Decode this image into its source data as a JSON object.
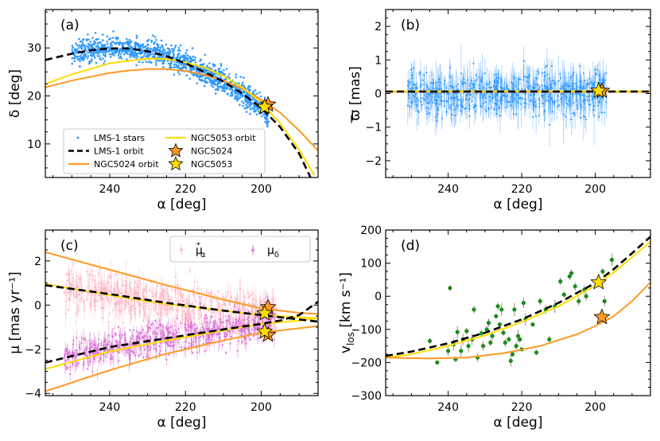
{
  "chart_data": [
    {
      "type": "scatter",
      "panel": "(a)",
      "xlabel": "α  [deg]",
      "ylabel": "δ  [deg]",
      "xlim": [
        257,
        185
      ],
      "ylim": [
        3,
        38
      ],
      "xticks": [
        240,
        220,
        200
      ],
      "yticks": [
        10,
        20,
        30
      ],
      "legend_position": "lower-left",
      "legend": [
        {
          "label": "LMS-1 stars",
          "kind": "dots",
          "color": "#3399ff"
        },
        {
          "label": "LMS-1 orbit",
          "kind": "dash",
          "color": "#000000"
        },
        {
          "label": "NGC5024 orbit",
          "kind": "line",
          "color": "#ff9922"
        },
        {
          "label": "NGC5053 orbit",
          "kind": "line",
          "color": "#ffdd00"
        },
        {
          "label": "NGC5024",
          "kind": "star",
          "color": "#ff9922"
        },
        {
          "label": "NGC5053",
          "kind": "star",
          "color": "#ffdd00"
        }
      ],
      "series": [
        {
          "name": "LMS-1 orbit",
          "style": "dash",
          "color": "#000000",
          "x": [
            257,
            250,
            245,
            240,
            235,
            230,
            225,
            220,
            215,
            210,
            205,
            200,
            195,
            190,
            187
          ],
          "y": [
            27.5,
            28.8,
            29.5,
            29.9,
            29.9,
            29.3,
            28.3,
            26.8,
            25.0,
            23.0,
            20.5,
            17.5,
            13.5,
            8.0,
            3
          ]
        },
        {
          "name": "NGC5024 orbit",
          "style": "line",
          "color": "#ff9922",
          "x": [
            257,
            250,
            240,
            235,
            230,
            225,
            220,
            215,
            210,
            205,
            200,
            195,
            190,
            185
          ],
          "y": [
            21.8,
            23.2,
            24.8,
            25.3,
            25.6,
            25.6,
            25.2,
            24.4,
            23.2,
            21.5,
            19.2,
            16.5,
            12.8,
            8.6
          ]
        },
        {
          "name": "NGC5053 orbit",
          "style": "line",
          "color": "#ffdd00",
          "x": [
            257,
            250,
            240,
            230,
            225,
            220,
            215,
            210,
            205,
            200,
            195,
            190,
            186
          ],
          "y": [
            22.5,
            24.5,
            26.8,
            27.8,
            27.7,
            27.0,
            25.9,
            24.2,
            21.8,
            18.6,
            14.3,
            8.8,
            3.5
          ]
        }
      ],
      "stars_color": "#3399ff",
      "points": [
        {
          "name": "NGC5024",
          "x": 198.2,
          "y": 18.2,
          "color": "#ff9922"
        },
        {
          "name": "NGC5053",
          "x": 199.1,
          "y": 17.7,
          "color": "#ffdd00"
        }
      ]
    },
    {
      "type": "scatter",
      "panel": "(b)",
      "xlabel": "α  [deg]",
      "ylabel": "ϖ  [mas]",
      "xlim": [
        257,
        185
      ],
      "ylim": [
        -2.5,
        2.5
      ],
      "xticks": [
        240,
        220,
        200
      ],
      "yticks": [
        -2,
        -1,
        0,
        1,
        2
      ],
      "series": [
        {
          "name": "LMS-1 orbit",
          "style": "dash",
          "color": "#000000",
          "x": [
            257,
            185
          ],
          "y": [
            0.06,
            0.06
          ]
        },
        {
          "name": "NGC5024 orbit",
          "style": "line",
          "color": "#ff9922",
          "x": [
            257,
            185
          ],
          "y": [
            0.05,
            0.05
          ]
        },
        {
          "name": "NGC5053 orbit",
          "style": "line",
          "color": "#ffdd00",
          "x": [
            257,
            185
          ],
          "y": [
            0.07,
            0.07
          ]
        }
      ],
      "stars_color": "#3399ff",
      "points": [
        {
          "name": "NGC5024",
          "x": 198.2,
          "y": 0.08,
          "color": "#ff9922"
        },
        {
          "name": "NGC5053",
          "x": 199.1,
          "y": 0.08,
          "color": "#ffdd00"
        }
      ]
    },
    {
      "type": "scatter",
      "panel": "(c)",
      "xlabel": "α  [deg]",
      "ylabel": "μ  [mas yr⁻¹]",
      "xlim": [
        257,
        185
      ],
      "ylim": [
        -4.1,
        3.4
      ],
      "xticks": [
        240,
        220,
        200
      ],
      "yticks": [
        -4,
        -2,
        0,
        2
      ],
      "legend_position": "top-right",
      "legend": [
        {
          "label": "μ",
          "sup": "*",
          "sub": "α",
          "color": "#ffb6c1"
        },
        {
          "label": "μ",
          "sup": "",
          "sub": "δ",
          "color": "#da70d6"
        }
      ],
      "series": [
        {
          "name": "LMS-1 orbit μα",
          "style": "dash",
          "color": "#000000",
          "x": [
            257,
            240,
            225,
            210,
            200,
            190,
            185
          ],
          "y": [
            0.9,
            0.5,
            0.1,
            -0.25,
            -0.45,
            -0.65,
            -0.75
          ]
        },
        {
          "name": "LMS-1 orbit μδ",
          "style": "dash",
          "color": "#000000",
          "x": [
            257,
            240,
            225,
            210,
            200,
            195,
            190,
            185
          ],
          "y": [
            -2.6,
            -1.9,
            -1.5,
            -1.1,
            -0.85,
            -0.7,
            -0.45,
            0.15
          ]
        },
        {
          "name": "NGC5024 orbit μα",
          "style": "line",
          "color": "#ff9922",
          "x": [
            257,
            240,
            225,
            210,
            200,
            190,
            185
          ],
          "y": [
            2.4,
            1.6,
            0.9,
            0.25,
            -0.15,
            -0.35,
            -0.4
          ]
        },
        {
          "name": "NGC5024 orbit μδ",
          "style": "line",
          "color": "#ff9922",
          "x": [
            257,
            240,
            225,
            210,
            200,
            190,
            185
          ],
          "y": [
            -3.9,
            -2.95,
            -2.2,
            -1.6,
            -1.25,
            -1.05,
            -0.95
          ]
        },
        {
          "name": "NGC5053 orbit μα",
          "style": "line",
          "color": "#ffdd00",
          "x": [
            257,
            240,
            225,
            210,
            200,
            190,
            185
          ],
          "y": [
            0.95,
            0.45,
            0.05,
            -0.25,
            -0.45,
            -0.55,
            -0.6
          ]
        },
        {
          "name": "NGC5053 orbit μδ",
          "style": "line",
          "color": "#ffdd00",
          "x": [
            257,
            240,
            225,
            210,
            200,
            190,
            185
          ],
          "y": [
            -2.9,
            -2.1,
            -1.6,
            -1.15,
            -0.85,
            -0.7,
            -0.6
          ]
        }
      ],
      "mu_alpha_color": "#ffb6c1",
      "mu_delta_color": "#da70d6",
      "points": [
        {
          "name": "NGC5024 μα",
          "x": 198.2,
          "y": -0.1,
          "color": "#ff9922"
        },
        {
          "name": "NGC5053 μα",
          "x": 199.1,
          "y": -0.37,
          "color": "#ffdd00"
        },
        {
          "name": "NGC5024 μδ",
          "x": 198.2,
          "y": -1.35,
          "color": "#ff9922"
        },
        {
          "name": "NGC5053 μδ",
          "x": 199.1,
          "y": -1.2,
          "color": "#ffdd00"
        }
      ]
    },
    {
      "type": "scatter",
      "panel": "(d)",
      "xlabel": "α  [deg]",
      "ylabel": "v_los  [km s⁻¹]",
      "xlim": [
        257,
        185
      ],
      "ylim": [
        -300,
        200
      ],
      "xticks": [
        240,
        220,
        200
      ],
      "yticks": [
        -300,
        -200,
        -100,
        0,
        100,
        200
      ],
      "series": [
        {
          "name": "LMS-1 orbit",
          "style": "dash",
          "color": "#000000",
          "x": [
            257,
            250,
            240,
            230,
            220,
            210,
            200,
            195,
            190,
            185
          ],
          "y": [
            -180,
            -167,
            -142,
            -110,
            -70,
            -20,
            40,
            82,
            130,
            180
          ]
        },
        {
          "name": "NGC5053 orbit",
          "style": "line",
          "color": "#ffdd00",
          "x": [
            257,
            250,
            240,
            230,
            220,
            210,
            200,
            195,
            190,
            185
          ],
          "y": [
            -185,
            -175,
            -150,
            -118,
            -78,
            -30,
            32,
            72,
            118,
            165
          ]
        },
        {
          "name": "NGC5024 orbit",
          "style": "line",
          "color": "#ff9922",
          "x": [
            257,
            245,
            235,
            225,
            215,
            205,
            200,
            195,
            190,
            185
          ],
          "y": [
            -185,
            -188,
            -185,
            -172,
            -150,
            -115,
            -90,
            -60,
            -15,
            42
          ]
        }
      ],
      "marker_color": "#1a8c1a",
      "stars": [
        {
          "x": 245,
          "y": -135
        },
        {
          "x": 243,
          "y": -200
        },
        {
          "x": 240,
          "y": -165
        },
        {
          "x": 239.5,
          "y": 25
        },
        {
          "x": 238.5,
          "y": -145
        },
        {
          "x": 238,
          "y": -190
        },
        {
          "x": 237.5,
          "y": -108
        },
        {
          "x": 236.5,
          "y": -165
        },
        {
          "x": 236,
          "y": -130
        },
        {
          "x": 235,
          "y": -105
        },
        {
          "x": 234.5,
          "y": -150
        },
        {
          "x": 233.5,
          "y": -130
        },
        {
          "x": 233,
          "y": -40
        },
        {
          "x": 232,
          "y": -185
        },
        {
          "x": 231,
          "y": -112
        },
        {
          "x": 230.5,
          "y": -150
        },
        {
          "x": 229.5,
          "y": -100
        },
        {
          "x": 229,
          "y": -80
        },
        {
          "x": 228.5,
          "y": -140
        },
        {
          "x": 228,
          "y": -120
        },
        {
          "x": 227,
          "y": -60
        },
        {
          "x": 226.5,
          "y": -30
        },
        {
          "x": 226,
          "y": -85
        },
        {
          "x": 225.5,
          "y": -40
        },
        {
          "x": 225,
          "y": -110
        },
        {
          "x": 224.5,
          "y": -140
        },
        {
          "x": 223.5,
          "y": -130
        },
        {
          "x": 223,
          "y": -195
        },
        {
          "x": 222.5,
          "y": -175
        },
        {
          "x": 222,
          "y": -40
        },
        {
          "x": 221.5,
          "y": -150
        },
        {
          "x": 221,
          "y": -120
        },
        {
          "x": 220.5,
          "y": -130
        },
        {
          "x": 220,
          "y": -160
        },
        {
          "x": 219.5,
          "y": -20
        },
        {
          "x": 219,
          "y": -70
        },
        {
          "x": 217,
          "y": -85
        },
        {
          "x": 216,
          "y": -170
        },
        {
          "x": 215,
          "y": -15
        },
        {
          "x": 213.5,
          "y": -40
        },
        {
          "x": 212.5,
          "y": -130
        },
        {
          "x": 211,
          "y": -30
        },
        {
          "x": 209.5,
          "y": 45
        },
        {
          "x": 208.5,
          "y": 5
        },
        {
          "x": 207,
          "y": 60
        },
        {
          "x": 206.5,
          "y": 70
        },
        {
          "x": 205.5,
          "y": 30
        },
        {
          "x": 204.5,
          "y": -15
        },
        {
          "x": 203,
          "y": 20
        },
        {
          "x": 202.5,
          "y": 0
        },
        {
          "x": 198,
          "y": 75
        },
        {
          "x": 197.5,
          "y": -15
        },
        {
          "x": 195.5,
          "y": 110
        }
      ],
      "points": [
        {
          "name": "NGC5053",
          "x": 199.1,
          "y": 42,
          "color": "#ffdd00"
        },
        {
          "name": "NGC5024",
          "x": 198.2,
          "y": -63,
          "color": "#ff9922"
        }
      ]
    }
  ]
}
